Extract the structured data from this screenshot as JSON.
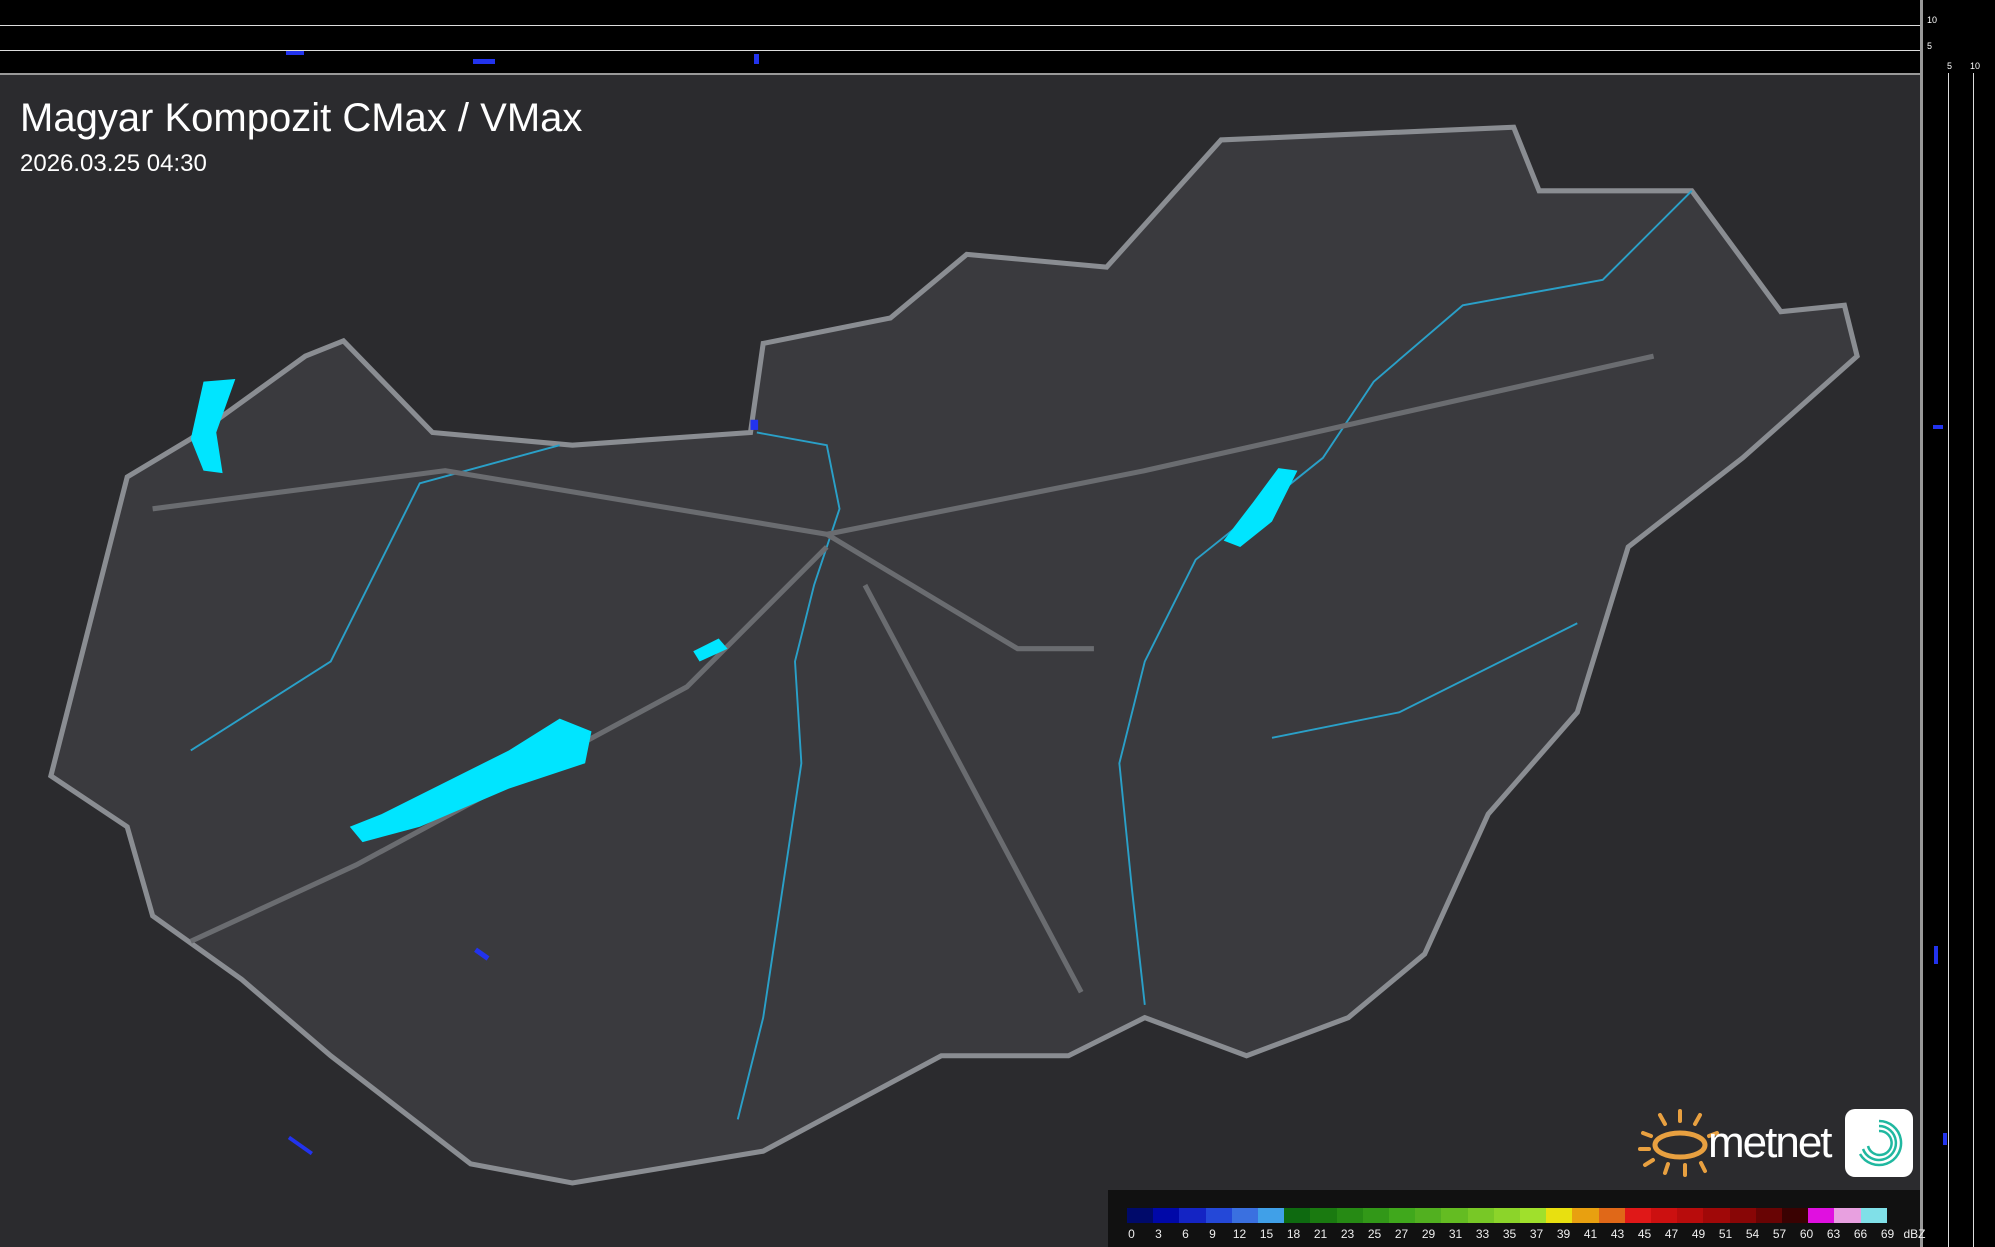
{
  "header": {
    "title": "Magyar Kompozit CMax / VMax",
    "datetime": "2026.03.25 04:30"
  },
  "side_axis": {
    "top_ticks": [
      "10",
      "5"
    ],
    "right_ticks": [
      "5",
      "10"
    ]
  },
  "legend": {
    "unit": "dBZ",
    "labels": [
      "0",
      "3",
      "6",
      "9",
      "12",
      "15",
      "18",
      "21",
      "23",
      "25",
      "27",
      "29",
      "31",
      "33",
      "35",
      "37",
      "39",
      "41",
      "43",
      "45",
      "47",
      "49",
      "51",
      "54",
      "57",
      "60",
      "63",
      "66",
      "69"
    ],
    "colors": [
      "#000a6a",
      "#0008a8",
      "#1424c4",
      "#2448d8",
      "#3a70e0",
      "#40a0e8",
      "#0e6a10",
      "#1a7a10",
      "#268a14",
      "#329818",
      "#40a81c",
      "#52b020",
      "#64bc22",
      "#78c826",
      "#8cd42a",
      "#a0e02c",
      "#e8e010",
      "#e8a010",
      "#e06818",
      "#e01818",
      "#cc1010",
      "#b80c0c",
      "#a00808",
      "#880606",
      "#680404",
      "#3a0202",
      "#e010e0",
      "#e8a0e0",
      "#80e0e8"
    ]
  },
  "brand": {
    "name": "metnet",
    "colors": {
      "sun": "#e8a040",
      "lake": "#00e5ff",
      "river": "#2aa0c8",
      "border": "#8a8d92"
    }
  }
}
